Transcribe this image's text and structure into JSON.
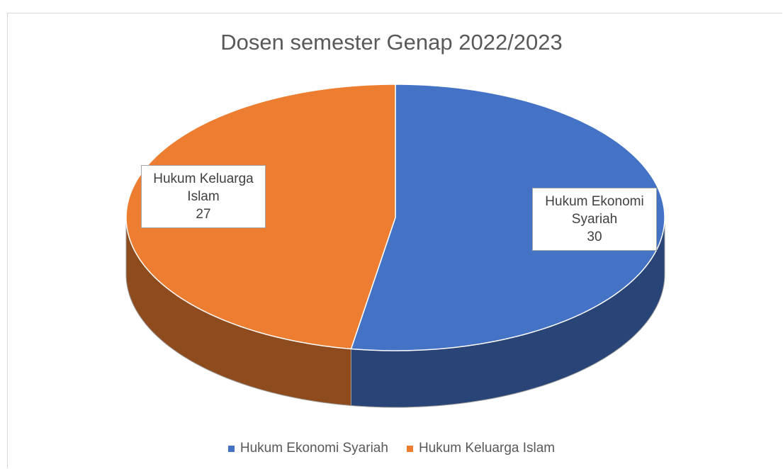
{
  "chart_data": {
    "type": "pie3d",
    "title": "Dosen semester Genap 2022/2023",
    "categories": [
      "Hukum Ekonomi Syariah",
      "Hukum Keluarga Islam"
    ],
    "values": [
      30,
      27
    ],
    "colors": [
      "#4472c4",
      "#ed7d31"
    ],
    "legend": "bottom"
  }
}
